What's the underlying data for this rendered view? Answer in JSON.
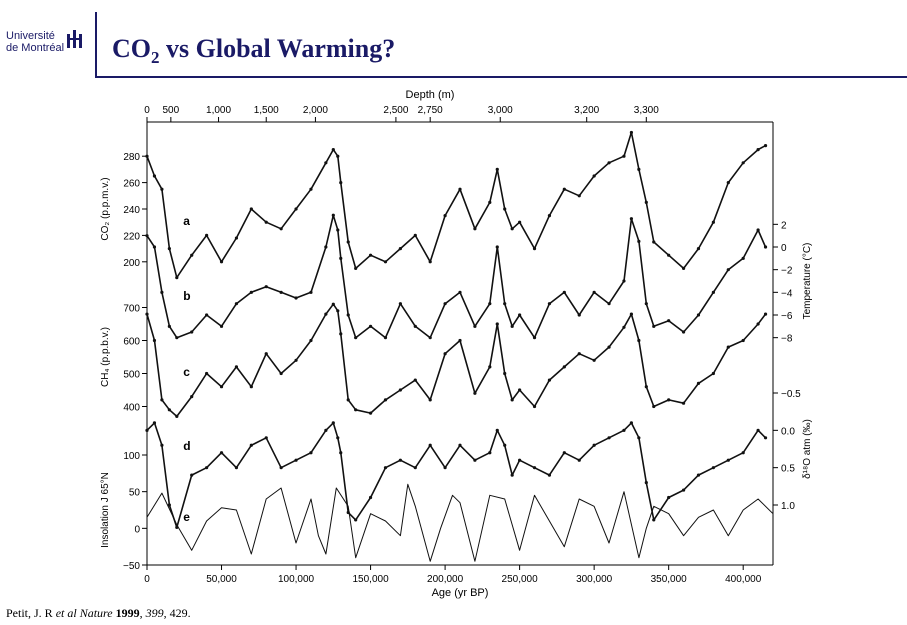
{
  "header": {
    "logo_line1": "Université",
    "logo_line2": "de Montréal",
    "title_pre": "CO",
    "title_sub": "2",
    "title_post": " vs Global Warming?"
  },
  "citation": {
    "prefix": "Petit, J. R ",
    "etal": " et al",
    "journal": " Nature ",
    "year": "1999",
    "vol": "399",
    "pages": ", 429."
  },
  "colors": {
    "brand": "#1a1a66",
    "data": "#111111"
  },
  "chart_data": {
    "type": "line",
    "x_label": "Age (yr BP)",
    "x_range": [
      0,
      420000
    ],
    "x_ticks": [
      0,
      50000,
      100000,
      150000,
      200000,
      250000,
      300000,
      350000,
      400000
    ],
    "x_tick_labels": [
      "0",
      "50,000",
      "100,000",
      "150,000",
      "200,000",
      "250,000",
      "300,000",
      "350,000",
      "400,000"
    ],
    "depth_label": "Depth (m)",
    "depth_ticks": [
      {
        "label": "0",
        "age": 0
      },
      {
        "label": "500",
        "age": 16000
      },
      {
        "label": "1,000",
        "age": 48000
      },
      {
        "label": "1,500",
        "age": 80000
      },
      {
        "label": "2,000",
        "age": 113000
      },
      {
        "label": "2,500",
        "age": 167000
      },
      {
        "label": "2,750",
        "age": 190000
      },
      {
        "label": "3,000",
        "age": 237000
      },
      {
        "label": "3,200",
        "age": 295000
      },
      {
        "label": "3,300",
        "age": 335000
      }
    ],
    "left_axes": [
      {
        "label": "CO₂ (p.p.m.v.)",
        "range": [
          190,
          290
        ],
        "ticks": [
          200,
          220,
          240,
          260,
          280
        ],
        "tick_labels": [
          "200",
          "220",
          "240",
          "260",
          "280"
        ]
      },
      {
        "label": "CH₄ (p.p.b.v.)",
        "range": [
          350,
          750
        ],
        "ticks": [
          400,
          500,
          600,
          700
        ],
        "tick_labels": [
          "400",
          "500",
          "600",
          "700"
        ]
      },
      {
        "label": "Insolation J 65°N",
        "range": [
          -50,
          100
        ],
        "ticks": [
          -50,
          0,
          50,
          100
        ],
        "tick_labels": [
          "−50",
          "0",
          "50",
          "100"
        ]
      }
    ],
    "right_axes": [
      {
        "label": "Temperature (°C)",
        "range": [
          -9,
          3
        ],
        "ticks": [
          2,
          0,
          -2,
          -4,
          -6,
          -8
        ],
        "tick_labels": [
          "2",
          "0",
          "−2",
          "−4",
          "−6",
          "−8"
        ]
      },
      {
        "label": "δ¹⁸O atm (‰)",
        "range": [
          -0.5,
          1.0
        ],
        "ticks": [
          -0.5,
          0.0,
          0.5,
          1.0
        ],
        "tick_labels": [
          "−0.5",
          "0.0",
          "0.5",
          "1.0"
        ]
      }
    ],
    "series": [
      {
        "name": "a",
        "quantity": "CO2",
        "unit": "p.p.m.v.",
        "x": [
          0,
          5000,
          10000,
          15000,
          20000,
          30000,
          40000,
          50000,
          60000,
          70000,
          80000,
          90000,
          100000,
          110000,
          120000,
          125000,
          128000,
          130000,
          135000,
          140000,
          150000,
          160000,
          170000,
          180000,
          190000,
          200000,
          210000,
          220000,
          230000,
          235000,
          240000,
          245000,
          250000,
          260000,
          270000,
          280000,
          290000,
          300000,
          310000,
          320000,
          325000,
          330000,
          335000,
          340000,
          350000,
          360000,
          370000,
          380000,
          390000,
          400000,
          410000,
          415000
        ],
        "y": [
          280,
          265,
          255,
          210,
          188,
          205,
          220,
          200,
          218,
          240,
          230,
          225,
          240,
          255,
          275,
          285,
          280,
          260,
          215,
          195,
          205,
          200,
          210,
          220,
          200,
          235,
          255,
          225,
          245,
          270,
          240,
          225,
          230,
          210,
          235,
          255,
          250,
          265,
          275,
          280,
          298,
          270,
          245,
          215,
          205,
          195,
          210,
          230,
          260,
          275,
          285,
          288
        ]
      },
      {
        "name": "b",
        "quantity": "Temperature",
        "unit": "°C",
        "x": [
          0,
          5000,
          10000,
          15000,
          20000,
          30000,
          40000,
          50000,
          60000,
          70000,
          80000,
          90000,
          100000,
          110000,
          120000,
          125000,
          128000,
          130000,
          135000,
          140000,
          150000,
          160000,
          170000,
          180000,
          190000,
          200000,
          210000,
          220000,
          230000,
          235000,
          240000,
          245000,
          250000,
          260000,
          270000,
          280000,
          290000,
          300000,
          310000,
          320000,
          325000,
          330000,
          335000,
          340000,
          350000,
          360000,
          370000,
          380000,
          390000,
          400000,
          410000,
          415000
        ],
        "y": [
          1,
          0,
          -4,
          -7,
          -8,
          -7.5,
          -6,
          -7,
          -5,
          -4,
          -3.5,
          -4,
          -4.5,
          -4,
          0,
          2.8,
          1.5,
          -1,
          -6,
          -8,
          -7,
          -8,
          -5,
          -7,
          -8,
          -5,
          -4,
          -7,
          -5,
          0,
          -5,
          -7,
          -6,
          -8,
          -5,
          -4,
          -6,
          -4,
          -5,
          -3,
          2.5,
          0.5,
          -5,
          -7,
          -6.5,
          -7.5,
          -6,
          -4,
          -2,
          -1,
          1.5,
          0
        ]
      },
      {
        "name": "c",
        "quantity": "CH4",
        "unit": "p.p.b.v.",
        "x": [
          0,
          5000,
          10000,
          15000,
          20000,
          30000,
          40000,
          50000,
          60000,
          70000,
          80000,
          90000,
          100000,
          110000,
          120000,
          125000,
          128000,
          130000,
          135000,
          140000,
          150000,
          160000,
          170000,
          180000,
          190000,
          200000,
          210000,
          220000,
          230000,
          235000,
          240000,
          245000,
          250000,
          260000,
          270000,
          280000,
          290000,
          300000,
          310000,
          320000,
          325000,
          330000,
          335000,
          340000,
          350000,
          360000,
          370000,
          380000,
          390000,
          400000,
          410000,
          415000
        ],
        "y": [
          680,
          600,
          420,
          390,
          370,
          430,
          500,
          460,
          520,
          460,
          560,
          500,
          540,
          600,
          680,
          710,
          690,
          620,
          420,
          390,
          380,
          420,
          450,
          480,
          420,
          560,
          600,
          440,
          520,
          650,
          500,
          420,
          450,
          400,
          480,
          520,
          560,
          540,
          580,
          640,
          680,
          600,
          460,
          400,
          420,
          410,
          470,
          500,
          580,
          600,
          650,
          680
        ]
      },
      {
        "name": "d",
        "quantity": "δ¹⁸O atm",
        "unit": "‰",
        "x": [
          0,
          5000,
          10000,
          15000,
          20000,
          30000,
          40000,
          50000,
          60000,
          70000,
          80000,
          90000,
          100000,
          110000,
          120000,
          125000,
          128000,
          130000,
          135000,
          140000,
          150000,
          160000,
          170000,
          180000,
          190000,
          200000,
          210000,
          220000,
          230000,
          235000,
          240000,
          245000,
          250000,
          260000,
          270000,
          280000,
          290000,
          300000,
          310000,
          320000,
          325000,
          330000,
          335000,
          340000,
          350000,
          360000,
          370000,
          380000,
          390000,
          400000,
          410000,
          415000
        ],
        "y": [
          0.0,
          -0.1,
          0.2,
          1.0,
          1.3,
          0.6,
          0.5,
          0.3,
          0.5,
          0.2,
          0.1,
          0.5,
          0.4,
          0.3,
          0.0,
          -0.1,
          0.1,
          0.3,
          1.1,
          1.2,
          0.9,
          0.5,
          0.4,
          0.5,
          0.2,
          0.5,
          0.2,
          0.4,
          0.3,
          0.0,
          0.2,
          0.6,
          0.4,
          0.5,
          0.6,
          0.3,
          0.4,
          0.2,
          0.1,
          0.0,
          -0.1,
          0.1,
          0.7,
          1.2,
          0.9,
          0.8,
          0.6,
          0.5,
          0.4,
          0.3,
          0.0,
          0.1
        ]
      },
      {
        "name": "e",
        "quantity": "Insolation J 65°N",
        "x": [
          0,
          10000,
          20000,
          30000,
          40000,
          50000,
          60000,
          70000,
          80000,
          90000,
          100000,
          110000,
          115000,
          120000,
          127000,
          135000,
          140000,
          150000,
          160000,
          170000,
          175000,
          180000,
          190000,
          197000,
          205000,
          210000,
          220000,
          230000,
          240000,
          250000,
          260000,
          270000,
          280000,
          290000,
          300000,
          310000,
          320000,
          330000,
          335000,
          340000,
          350000,
          360000,
          370000,
          380000,
          390000,
          400000,
          410000,
          420000
        ],
        "y": [
          15,
          48,
          5,
          -30,
          10,
          28,
          25,
          -35,
          40,
          55,
          -20,
          40,
          -10,
          -35,
          55,
          30,
          -40,
          20,
          10,
          -10,
          60,
          30,
          -45,
          0,
          45,
          35,
          -45,
          45,
          40,
          -30,
          45,
          10,
          -25,
          40,
          30,
          -20,
          50,
          -40,
          0,
          30,
          20,
          -10,
          15,
          25,
          -10,
          25,
          40,
          20
        ]
      }
    ],
    "series_labels": [
      "a",
      "b",
      "c",
      "d",
      "e"
    ]
  }
}
